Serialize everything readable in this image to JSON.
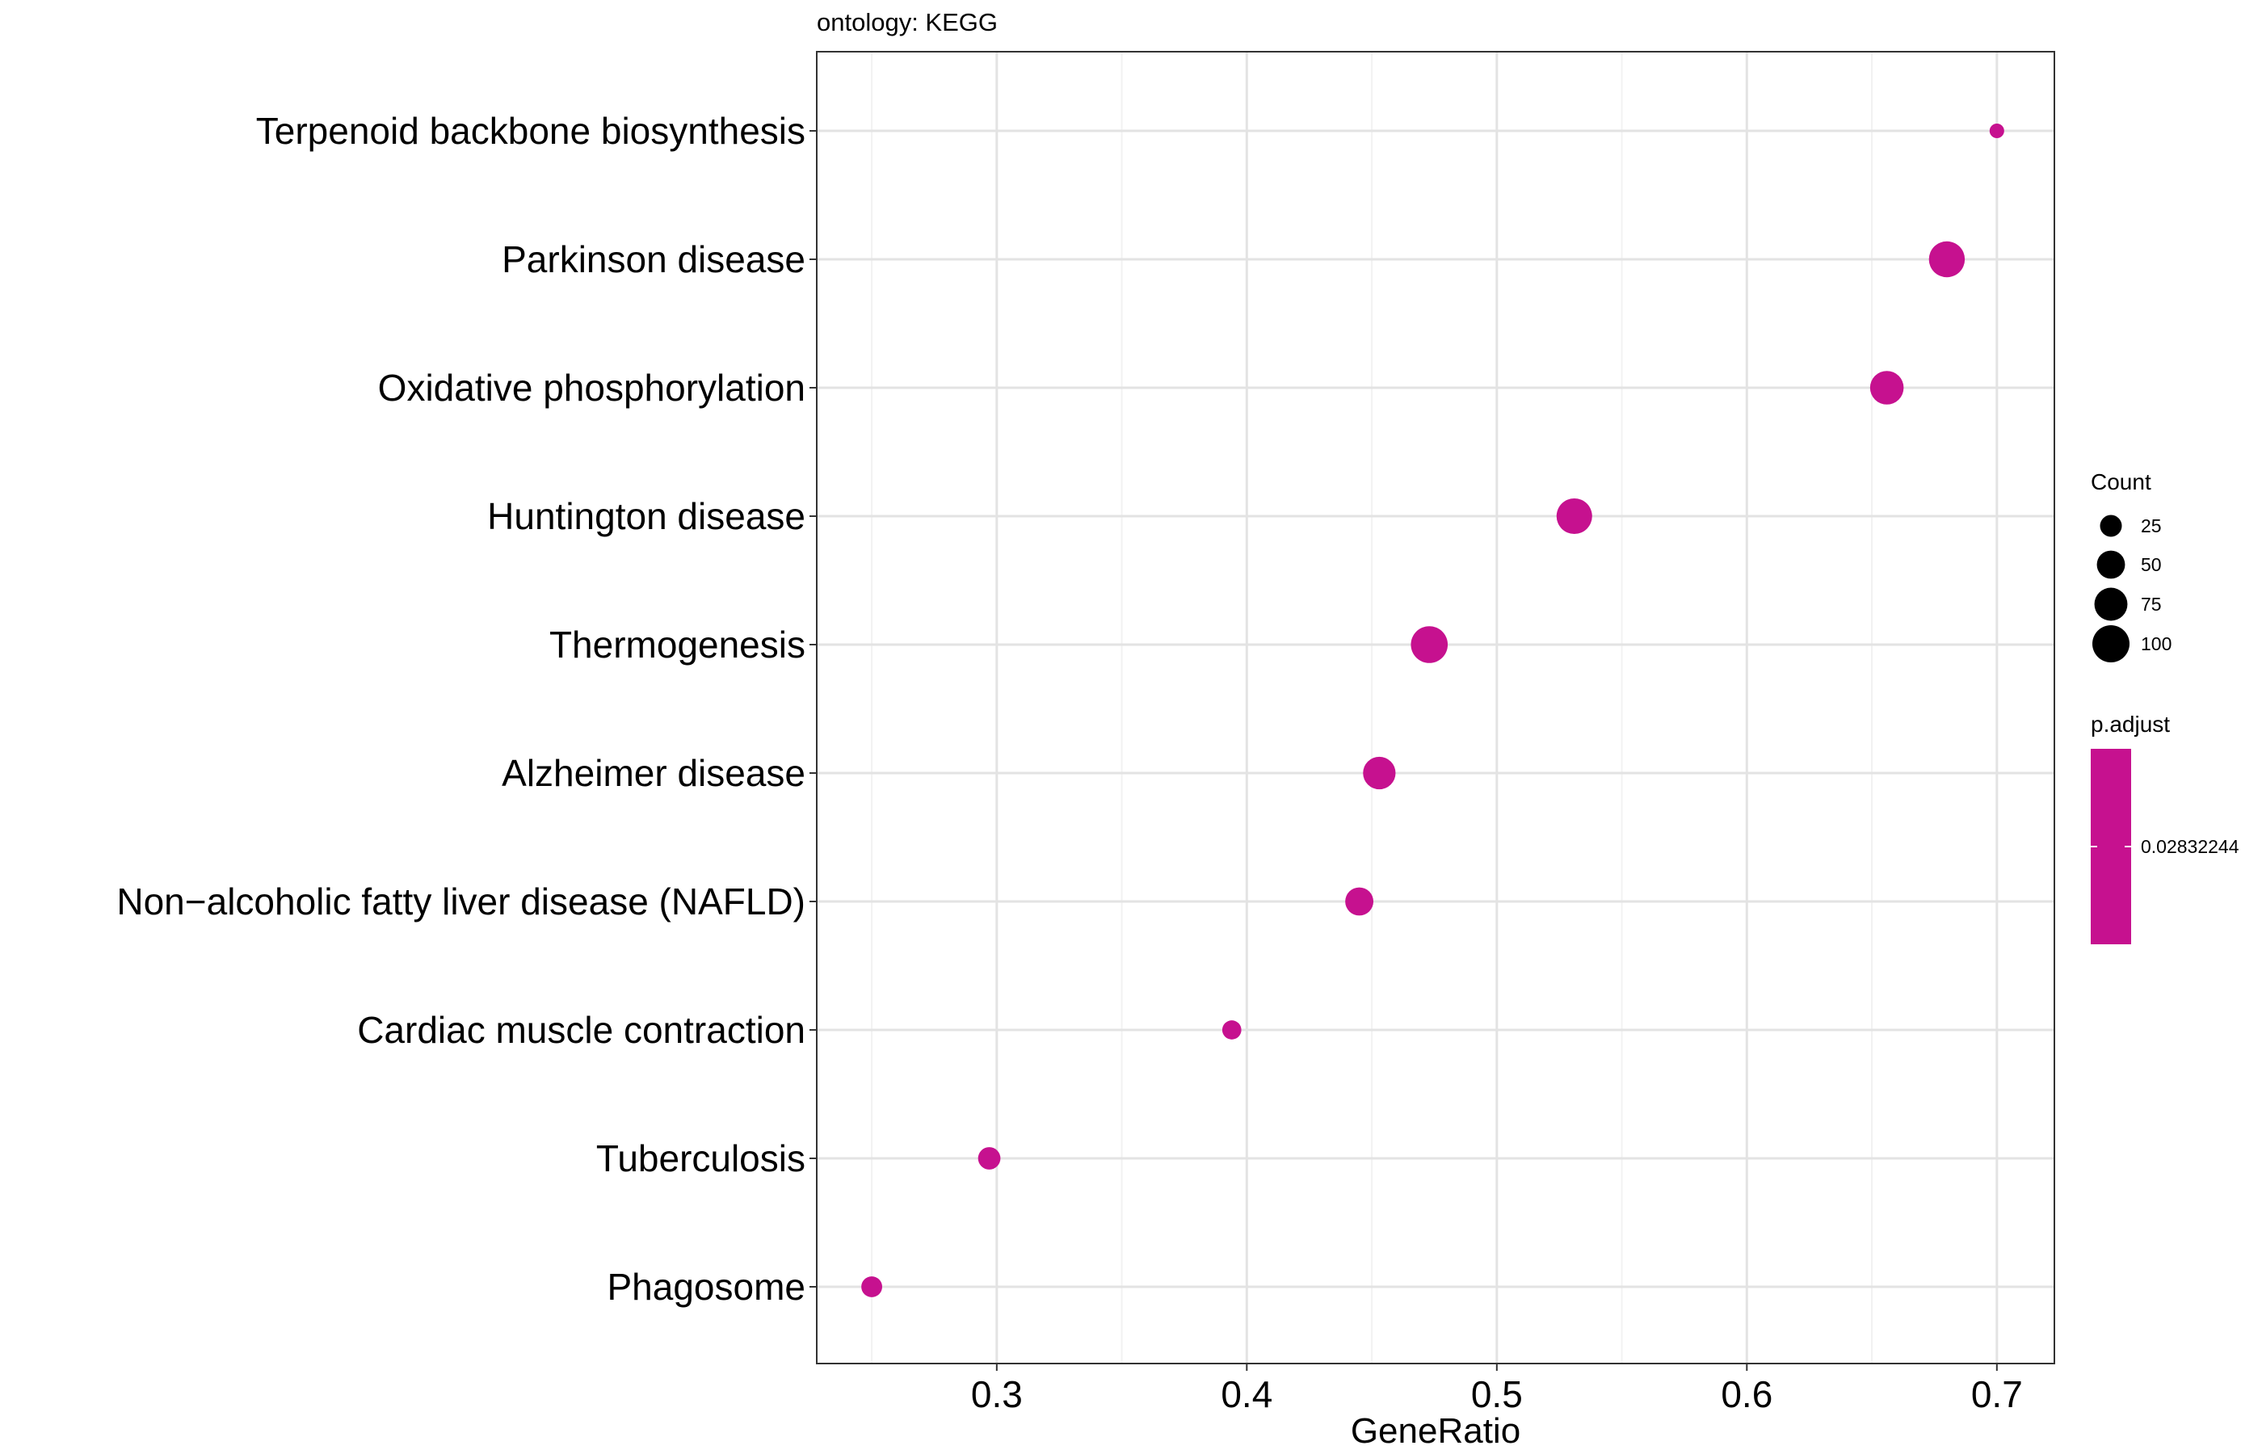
{
  "chart_data": {
    "type": "scatter",
    "title": "ontology: KEGG",
    "xlabel": "GeneRatio",
    "ylabel": "",
    "xlim": [
      0.228,
      0.723
    ],
    "xticks": [
      0.3,
      0.4,
      0.5,
      0.6,
      0.7
    ],
    "xtick_labels": [
      "0.3",
      "0.4",
      "0.5",
      "0.6",
      "0.7"
    ],
    "grid": true,
    "categories": [
      "Phagosome",
      "Tuberculosis",
      "Cardiac muscle contraction",
      "Non−alcoholic fatty liver disease (NAFLD)",
      "Alzheimer disease",
      "Thermogenesis",
      "Huntington disease",
      "Oxidative phosphorylation",
      "Parkinson disease",
      "Terpenoid backbone biosynthesis"
    ],
    "points": [
      {
        "category": "Phagosome",
        "x": 0.25,
        "count": 22
      },
      {
        "category": "Tuberculosis",
        "x": 0.297,
        "count": 27
      },
      {
        "category": "Cardiac muscle contraction",
        "x": 0.394,
        "count": 17
      },
      {
        "category": "Non−alcoholic fatty liver disease (NAFLD)",
        "x": 0.445,
        "count": 50
      },
      {
        "category": "Alzheimer disease",
        "x": 0.453,
        "count": 72
      },
      {
        "category": "Thermogenesis",
        "x": 0.473,
        "count": 98
      },
      {
        "category": "Huntington disease",
        "x": 0.531,
        "count": 90
      },
      {
        "category": "Oxidative phosphorylation",
        "x": 0.656,
        "count": 78
      },
      {
        "category": "Parkinson disease",
        "x": 0.68,
        "count": 92
      },
      {
        "category": "Terpenoid backbone biosynthesis",
        "x": 0.7,
        "count": 7
      }
    ],
    "point_color": "#c6118f",
    "legend": {
      "placement": "right",
      "size_title": "Count",
      "size_entries": [
        {
          "label": "25",
          "count": 25
        },
        {
          "label": "50",
          "count": 50
        },
        {
          "label": "75",
          "count": 75
        },
        {
          "label": "100",
          "count": 100
        }
      ],
      "color_title": "p.adjust",
      "color_label": "0.02832244",
      "color": "#c6118f"
    }
  }
}
